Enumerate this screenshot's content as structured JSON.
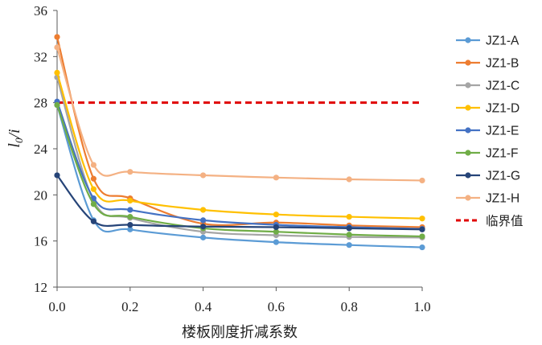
{
  "chart_data": {
    "type": "line",
    "title": "",
    "xlabel": "楼板刚度折减系数",
    "ylabel": {
      "main": "l",
      "sub": "0",
      "tail": "/i"
    },
    "xlim": [
      0.0,
      1.0
    ],
    "ylim": [
      12,
      36
    ],
    "xticks": [
      "0.0",
      "0.2",
      "0.4",
      "0.6",
      "0.8",
      "1.0"
    ],
    "yticks": [
      "12",
      "16",
      "20",
      "24",
      "28",
      "32",
      "36"
    ],
    "x": [
      0,
      0.1,
      0.2,
      0.4,
      0.6,
      0.8,
      1.0
    ],
    "series": [
      {
        "name": "JZ1-A",
        "color": "#5b9bd5",
        "values": [
          27.8,
          17.8,
          17.0,
          16.3,
          15.9,
          15.65,
          15.45
        ]
      },
      {
        "name": "JZ1-B",
        "color": "#ed7d31",
        "values": [
          33.7,
          21.4,
          19.7,
          17.5,
          17.6,
          17.35,
          17.2
        ]
      },
      {
        "name": "JZ1-C",
        "color": "#a5a5a5",
        "values": [
          30.2,
          19.5,
          18.0,
          16.8,
          16.5,
          16.35,
          16.3
        ]
      },
      {
        "name": "JZ1-D",
        "color": "#ffc000",
        "values": [
          30.6,
          20.5,
          19.5,
          18.7,
          18.3,
          18.1,
          17.95
        ]
      },
      {
        "name": "JZ1-E",
        "color": "#4472c4",
        "values": [
          28.1,
          19.7,
          18.7,
          17.8,
          17.4,
          17.2,
          17.05
        ]
      },
      {
        "name": "JZ1-F",
        "color": "#70ad47",
        "values": [
          27.8,
          19.2,
          18.1,
          17.1,
          16.8,
          16.55,
          16.4
        ]
      },
      {
        "name": "JZ1-G",
        "color": "#264478",
        "values": [
          21.7,
          17.7,
          17.4,
          17.25,
          17.2,
          17.1,
          17.0
        ]
      },
      {
        "name": "JZ1-H",
        "color": "#f4b183",
        "values": [
          32.8,
          22.6,
          22.0,
          21.7,
          21.5,
          21.35,
          21.25
        ]
      }
    ],
    "threshold": {
      "name": "临界值",
      "value": 28,
      "color": "#e00000",
      "style": "dashed"
    },
    "legend_position": "right"
  }
}
